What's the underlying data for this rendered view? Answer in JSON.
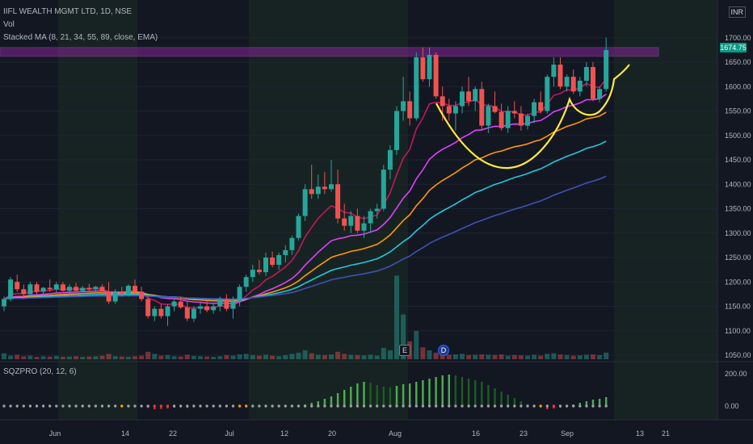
{
  "header": {
    "symbol_line": "IIFL WEALTH MGMT LTD, 1D, NSE",
    "vol_label": "Vol",
    "ma_label": "Stacked MA (8, 21, 34, 55, 89, close, EMA)",
    "currency": "INR"
  },
  "oscillator": {
    "label": "SQZPRO (20, 12, 6)"
  },
  "last_price": "1674.75",
  "events": {
    "earnings": "E",
    "dividend": "D"
  },
  "colors": {
    "background": "#131722",
    "up": "#26a69a",
    "down": "#ef5350",
    "ema8": "#c2185b",
    "ema21": "#e040fb",
    "ema34": "#ff9800",
    "ema55": "#26c6da",
    "ema89": "#3f51b5",
    "resistance": "#9c27b0",
    "pattern": "#ffeb3b"
  },
  "chart_data": {
    "type": "candlestick",
    "title": "IIFL WEALTH MGMT LTD, 1D, NSE",
    "price_ticks": [
      1050,
      1100,
      1150,
      1200,
      1250,
      1300,
      1350,
      1400,
      1450,
      1500,
      1550,
      1600,
      1650,
      1700
    ],
    "ylim": [
      1035,
      1750
    ],
    "osc_ticks": [
      "200.00",
      "0.00"
    ],
    "x_ticks": [
      "Jun",
      "14",
      "22",
      "Jul",
      "12",
      "20",
      "Aug",
      "16",
      "23",
      "Sep",
      "13",
      "21"
    ],
    "resistance_zone": [
      1662,
      1680
    ],
    "last_price": 1674.75,
    "candles_ohlc": [
      [
        1150,
        1170,
        1140,
        1165
      ],
      [
        1165,
        1210,
        1160,
        1205
      ],
      [
        1200,
        1215,
        1180,
        1185
      ],
      [
        1185,
        1195,
        1165,
        1175
      ],
      [
        1175,
        1200,
        1170,
        1195
      ],
      [
        1195,
        1200,
        1175,
        1180
      ],
      [
        1180,
        1190,
        1170,
        1188
      ],
      [
        1188,
        1205,
        1180,
        1185
      ],
      [
        1185,
        1200,
        1178,
        1195
      ],
      [
        1195,
        1200,
        1180,
        1182
      ],
      [
        1182,
        1195,
        1175,
        1190
      ],
      [
        1190,
        1198,
        1178,
        1182
      ],
      [
        1182,
        1192,
        1170,
        1188
      ],
      [
        1188,
        1196,
        1180,
        1185
      ],
      [
        1185,
        1192,
        1176,
        1190
      ],
      [
        1190,
        1195,
        1175,
        1180
      ],
      [
        1180,
        1200,
        1155,
        1160
      ],
      [
        1160,
        1185,
        1155,
        1180
      ],
      [
        1180,
        1190,
        1170,
        1175
      ],
      [
        1175,
        1195,
        1170,
        1192
      ],
      [
        1192,
        1205,
        1175,
        1180
      ],
      [
        1180,
        1190,
        1160,
        1165
      ],
      [
        1165,
        1170,
        1125,
        1130
      ],
      [
        1130,
        1150,
        1120,
        1145
      ],
      [
        1145,
        1155,
        1125,
        1130
      ],
      [
        1130,
        1155,
        1110,
        1150
      ],
      [
        1150,
        1165,
        1140,
        1160
      ],
      [
        1160,
        1170,
        1145,
        1148
      ],
      [
        1148,
        1160,
        1120,
        1125
      ],
      [
        1125,
        1150,
        1118,
        1145
      ],
      [
        1145,
        1160,
        1135,
        1150
      ],
      [
        1150,
        1160,
        1138,
        1142
      ],
      [
        1142,
        1155,
        1135,
        1150
      ],
      [
        1150,
        1170,
        1140,
        1165
      ],
      [
        1165,
        1175,
        1140,
        1145
      ],
      [
        1145,
        1170,
        1125,
        1160
      ],
      [
        1160,
        1195,
        1150,
        1190
      ],
      [
        1190,
        1215,
        1180,
        1210
      ],
      [
        1210,
        1235,
        1200,
        1225
      ],
      [
        1225,
        1245,
        1215,
        1220
      ],
      [
        1220,
        1260,
        1212,
        1250
      ],
      [
        1250,
        1262,
        1230,
        1235
      ],
      [
        1235,
        1260,
        1225,
        1255
      ],
      [
        1255,
        1275,
        1240,
        1265
      ],
      [
        1265,
        1295,
        1255,
        1290
      ],
      [
        1290,
        1340,
        1285,
        1335
      ],
      [
        1335,
        1400,
        1325,
        1390
      ],
      [
        1390,
        1440,
        1370,
        1380
      ],
      [
        1380,
        1420,
        1370,
        1395
      ],
      [
        1395,
        1425,
        1380,
        1390
      ],
      [
        1390,
        1450,
        1385,
        1400
      ],
      [
        1400,
        1430,
        1320,
        1330
      ],
      [
        1330,
        1360,
        1305,
        1315
      ],
      [
        1315,
        1345,
        1300,
        1335
      ],
      [
        1335,
        1350,
        1300,
        1305
      ],
      [
        1305,
        1335,
        1290,
        1320
      ],
      [
        1320,
        1350,
        1300,
        1345
      ],
      [
        1345,
        1360,
        1330,
        1350
      ],
      [
        1350,
        1440,
        1345,
        1430
      ],
      [
        1430,
        1480,
        1410,
        1470
      ],
      [
        1470,
        1560,
        1460,
        1550
      ],
      [
        1550,
        1620,
        1530,
        1570
      ],
      [
        1570,
        1590,
        1520,
        1535
      ],
      [
        1535,
        1670,
        1530,
        1660
      ],
      [
        1660,
        1680,
        1610,
        1615
      ],
      [
        1615,
        1680,
        1600,
        1665
      ],
      [
        1665,
        1670,
        1575,
        1580
      ],
      [
        1580,
        1600,
        1530,
        1560
      ],
      [
        1560,
        1575,
        1530,
        1545
      ],
      [
        1545,
        1570,
        1510,
        1560
      ],
      [
        1560,
        1600,
        1545,
        1590
      ],
      [
        1590,
        1620,
        1560,
        1570
      ],
      [
        1570,
        1600,
        1550,
        1595
      ],
      [
        1595,
        1610,
        1510,
        1520
      ],
      [
        1520,
        1565,
        1505,
        1560
      ],
      [
        1560,
        1590,
        1545,
        1548
      ],
      [
        1548,
        1565,
        1510,
        1515
      ],
      [
        1515,
        1560,
        1505,
        1550
      ],
      [
        1550,
        1570,
        1535,
        1545
      ],
      [
        1545,
        1560,
        1510,
        1520
      ],
      [
        1520,
        1545,
        1512,
        1540
      ],
      [
        1540,
        1575,
        1525,
        1568
      ],
      [
        1568,
        1590,
        1545,
        1550
      ],
      [
        1550,
        1625,
        1545,
        1620
      ],
      [
        1620,
        1660,
        1600,
        1645
      ],
      [
        1645,
        1660,
        1595,
        1600
      ],
      [
        1600,
        1625,
        1590,
        1620
      ],
      [
        1620,
        1635,
        1585,
        1590
      ],
      [
        1590,
        1620,
        1580,
        1612
      ],
      [
        1612,
        1650,
        1600,
        1640
      ],
      [
        1640,
        1650,
        1570,
        1575
      ],
      [
        1575,
        1600,
        1568,
        1595
      ],
      [
        1595,
        1700,
        1590,
        1674.75
      ]
    ],
    "volume": [
      20,
      12,
      15,
      10,
      12,
      8,
      10,
      9,
      11,
      8,
      9,
      10,
      8,
      9,
      10,
      12,
      18,
      10,
      9,
      8,
      10,
      12,
      25,
      18,
      12,
      14,
      10,
      9,
      15,
      11,
      10,
      9,
      8,
      10,
      14,
      12,
      16,
      18,
      14,
      12,
      15,
      12,
      10,
      14,
      18,
      22,
      30,
      20,
      15,
      14,
      16,
      25,
      18,
      15,
      14,
      13,
      15,
      12,
      38,
      30,
      280,
      150,
      60,
      95,
      40,
      30,
      22,
      18,
      15,
      16,
      18,
      14,
      15,
      16,
      15,
      14,
      16,
      12,
      14,
      13,
      12,
      15,
      12,
      18,
      20,
      16,
      14,
      12,
      13,
      15,
      16,
      14,
      22
    ],
    "squeeze_momentum": [
      0,
      0,
      0,
      0,
      0,
      0,
      0,
      0,
      0,
      0,
      0,
      0,
      0,
      0,
      0,
      0,
      0,
      0,
      0,
      0,
      0,
      0,
      -12,
      -20,
      -18,
      -15,
      -10,
      -8,
      -12,
      -5,
      0,
      0,
      0,
      0,
      0,
      0,
      0,
      0,
      0,
      0,
      0,
      0,
      0,
      0,
      0,
      5,
      10,
      20,
      30,
      45,
      60,
      80,
      100,
      120,
      140,
      150,
      145,
      130,
      120,
      115,
      125,
      135,
      140,
      150,
      160,
      170,
      180,
      190,
      195,
      190,
      180,
      170,
      160,
      150,
      130,
      110,
      90,
      70,
      50,
      30,
      10,
      0,
      -8,
      -20,
      -15,
      -10,
      -5,
      10,
      20,
      30,
      40,
      45,
      55
    ]
  }
}
